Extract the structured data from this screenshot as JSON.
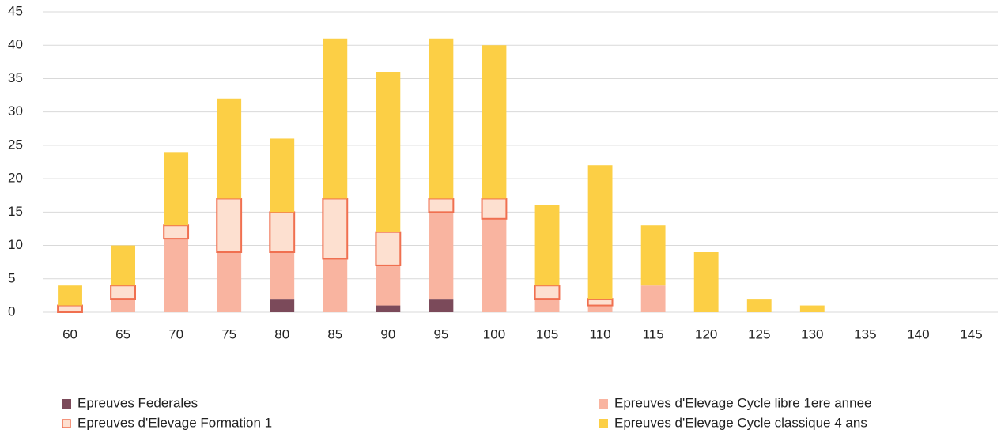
{
  "chart_data": {
    "type": "stacked_bar",
    "categories": [
      "60",
      "65",
      "70",
      "75",
      "80",
      "85",
      "90",
      "95",
      "100",
      "105",
      "110",
      "115",
      "120",
      "125",
      "130",
      "135",
      "140",
      "145"
    ],
    "series": [
      {
        "name": "Epreuves Federales",
        "color": "#7b4a5a",
        "values": [
          0,
          0,
          0,
          0,
          2,
          0,
          1,
          2,
          0,
          0,
          0,
          0,
          0,
          0,
          0,
          0,
          0,
          0
        ]
      },
      {
        "name": "Epreuves d'Elevage Cycle libre 1ere annee",
        "color": "#f9b4a0",
        "values": [
          0,
          2,
          11,
          9,
          7,
          8,
          6,
          13,
          14,
          2,
          1,
          4,
          0,
          0,
          0,
          0,
          0,
          0
        ]
      },
      {
        "name": "Epreuves d'Elevage Formation 1",
        "color": "#fde0d0",
        "stroke": "#f07050",
        "values": [
          1,
          2,
          2,
          8,
          6,
          9,
          5,
          2,
          3,
          2,
          1,
          0,
          0,
          0,
          0,
          0,
          0,
          0
        ]
      },
      {
        "name": "Epreuves d'Elevage Cycle classique 4 ans",
        "color": "#fccf45",
        "values": [
          3,
          6,
          11,
          15,
          11,
          24,
          24,
          24,
          23,
          12,
          20,
          9,
          9,
          2,
          1,
          0,
          0,
          0
        ]
      }
    ],
    "ylim": [
      0,
      45
    ],
    "yticks": [
      0,
      5,
      10,
      15,
      20,
      25,
      30,
      35,
      40,
      45
    ],
    "grid": true
  }
}
